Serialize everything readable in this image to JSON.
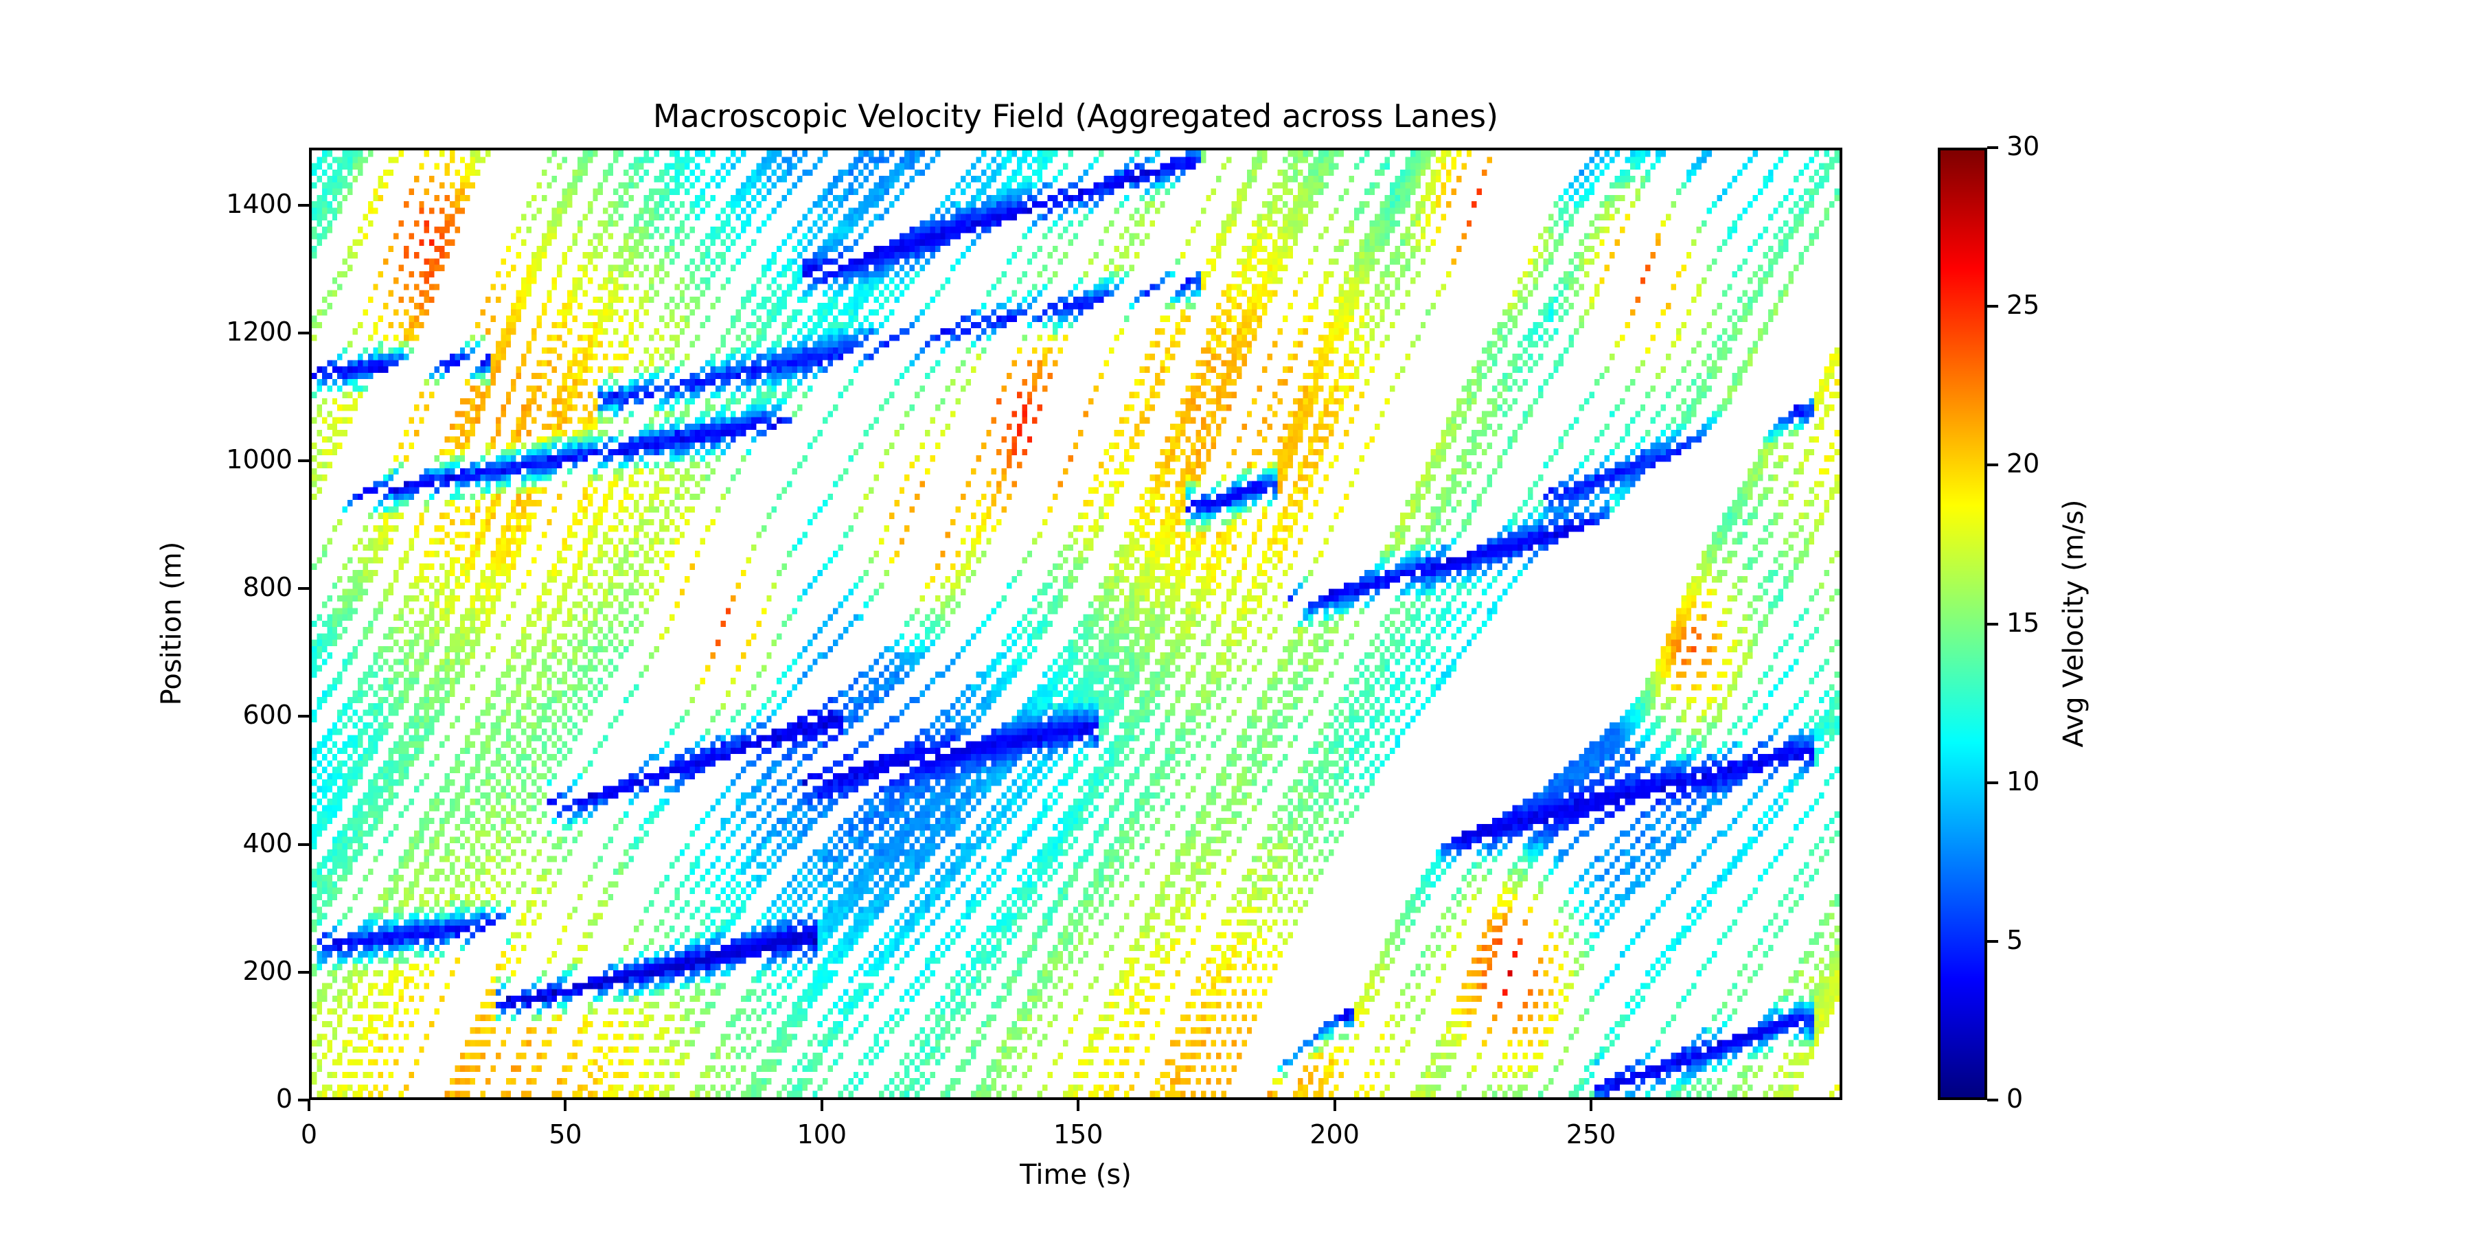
{
  "chart_data": {
    "type": "heatmap",
    "title": "Macroscopic Velocity Field (Aggregated across Lanes)",
    "xlabel": "Time (s)",
    "ylabel": "Position (m)",
    "xlim": [
      0,
      299
    ],
    "ylim": [
      0,
      1490
    ],
    "x_bin": 1,
    "y_bin": 10,
    "xticks": [
      0,
      50,
      100,
      150,
      200,
      250
    ],
    "yticks": [
      0,
      200,
      400,
      600,
      800,
      1000,
      1200,
      1400
    ],
    "colormap": "jet",
    "colorbar": {
      "label": "Avg Velocity (m/s)",
      "range": [
        0,
        30
      ],
      "ticks": [
        0,
        5,
        10,
        15,
        20,
        25,
        30
      ]
    },
    "grid": false,
    "empty_cells": "white (no vehicle)",
    "description": "Space-time velocity field: diagonal vehicle trajectory streaks (free flow 12-28 m/s) interrupted by backward/slow-propagating congestion bands (0-8 m/s).",
    "jam_bands": [
      {
        "t_start": 0,
        "pos_start": 1140,
        "t_end": 30,
        "pos_end": 1160,
        "v": 3
      },
      {
        "t_start": 10,
        "pos_start": 950,
        "t_end": 90,
        "pos_end": 1060,
        "v": 3
      },
      {
        "t_start": 60,
        "pos_start": 1100,
        "t_end": 170,
        "pos_end": 1280,
        "v": 4
      },
      {
        "t_start": 100,
        "pos_start": 1300,
        "t_end": 170,
        "pos_end": 1470,
        "v": 3
      },
      {
        "t_start": 5,
        "pos_start": 240,
        "t_end": 35,
        "pos_end": 270,
        "v": 3
      },
      {
        "t_start": 40,
        "pos_start": 150,
        "t_end": 95,
        "pos_end": 250,
        "v": 2
      },
      {
        "t_start": 50,
        "pos_start": 460,
        "t_end": 100,
        "pos_end": 590,
        "v": 3
      },
      {
        "t_start": 100,
        "pos_start": 500,
        "t_end": 150,
        "pos_end": 580,
        "v": 3
      },
      {
        "t_start": 175,
        "pos_start": 930,
        "t_end": 185,
        "pos_end": 960,
        "v": 3
      },
      {
        "t_start": 195,
        "pos_start": 780,
        "t_end": 250,
        "pos_end": 900,
        "v": 3
      },
      {
        "t_start": 225,
        "pos_start": 410,
        "t_end": 290,
        "pos_end": 540,
        "v": 3
      },
      {
        "t_start": 245,
        "pos_start": 950,
        "t_end": 290,
        "pos_end": 1080,
        "v": 4
      },
      {
        "t_start": 190,
        "pos_start": 60,
        "t_end": 200,
        "pos_end": 130,
        "v": 3
      },
      {
        "t_start": 255,
        "pos_start": 20,
        "t_end": 290,
        "pos_end": 120,
        "v": 3
      }
    ],
    "fast_regions": [
      {
        "t_center": 22,
        "pos_center": 1350,
        "v": 25
      },
      {
        "t_center": 80,
        "pos_center": 750,
        "v": 25
      },
      {
        "t_center": 120,
        "pos_center": 900,
        "v": 24
      },
      {
        "t_center": 140,
        "pos_center": 1050,
        "v": 26
      },
      {
        "t_center": 230,
        "pos_center": 1400,
        "v": 27
      },
      {
        "t_center": 260,
        "pos_center": 1300,
        "v": 25
      },
      {
        "t_center": 235,
        "pos_center": 200,
        "v": 27
      },
      {
        "t_center": 270,
        "pos_center": 700,
        "v": 24
      }
    ]
  }
}
